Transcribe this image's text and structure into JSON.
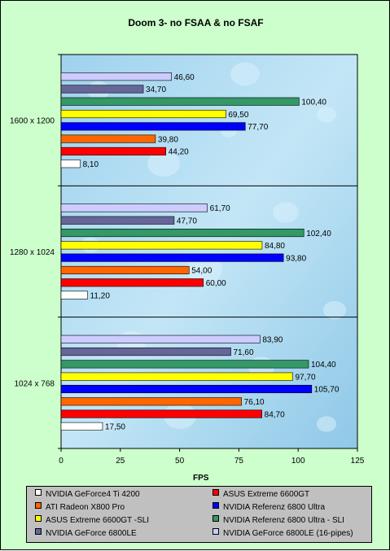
{
  "chart_data": {
    "type": "bar",
    "orientation": "horizontal",
    "title": "Doom 3- no FSAA & no FSAF",
    "xlabel": "FPS",
    "ylabel": "",
    "xlim": [
      0,
      125
    ],
    "xticks": [
      "0",
      "25",
      "50",
      "75",
      "100",
      "125"
    ],
    "grid": false,
    "legend_position": "bottom",
    "categories": [
      "1600 x 1200",
      "1280 x 1024",
      "1024 x 768"
    ],
    "series": [
      {
        "name": "NVIDIA GeForce4 Ti 4200",
        "color": "#ffffff",
        "values": [
          8.1,
          11.2,
          17.5
        ],
        "labels": [
          "8,10",
          "11,20",
          "17,50"
        ]
      },
      {
        "name": "ASUS Extreme 6600GT",
        "color": "#ff0000",
        "values": [
          44.2,
          60.0,
          84.7
        ],
        "labels": [
          "44,20",
          "60,00",
          "84,70"
        ]
      },
      {
        "name": "ATI Radeon X800 Pro",
        "color": "#ff6600",
        "values": [
          39.8,
          54.0,
          76.1
        ],
        "labels": [
          "39,80",
          "54,00",
          "76,10"
        ]
      },
      {
        "name": "NVIDIA  Referenz 6800 Ultra",
        "color": "#0000ff",
        "values": [
          77.7,
          93.8,
          105.7
        ],
        "labels": [
          "77,70",
          "93,80",
          "105,70"
        ]
      },
      {
        "name": "ASUS Extreme 6600GT -SLI",
        "color": "#ffff00",
        "values": [
          69.5,
          84.8,
          97.7
        ],
        "labels": [
          "69,50",
          "84,80",
          "97,70"
        ]
      },
      {
        "name": "NVIDIA  Referenz 6800 Ultra - SLI",
        "color": "#339966",
        "values": [
          100.4,
          102.4,
          104.4
        ],
        "labels": [
          "100,40",
          "102,40",
          "104,40"
        ]
      },
      {
        "name": "NVIDIA GeForce 6800LE",
        "color": "#666699",
        "values": [
          34.7,
          47.7,
          71.6
        ],
        "labels": [
          "34,70",
          "47,70",
          "71,60"
        ]
      },
      {
        "name": "NVIDIA GeForce 6800LE (16-pipes)",
        "color": "#ccccff",
        "values": [
          46.6,
          61.7,
          83.9
        ],
        "labels": [
          "46,60",
          "61,70",
          "83,90"
        ]
      }
    ],
    "legend_entries": [
      "NVIDIA GeForce4 Ti 4200",
      "ASUS Extreme 6600GT",
      "ATI Radeon X800 Pro",
      "NVIDIA  Referenz 6800 Ultra",
      "ASUS Extreme 6600GT -SLI",
      "NVIDIA  Referenz 6800 Ultra - SLI",
      "NVIDIA GeForce 6800LE",
      "NVIDIA GeForce 6800LE (16-pipes)"
    ],
    "plot_background": "light blue water droplets"
  }
}
